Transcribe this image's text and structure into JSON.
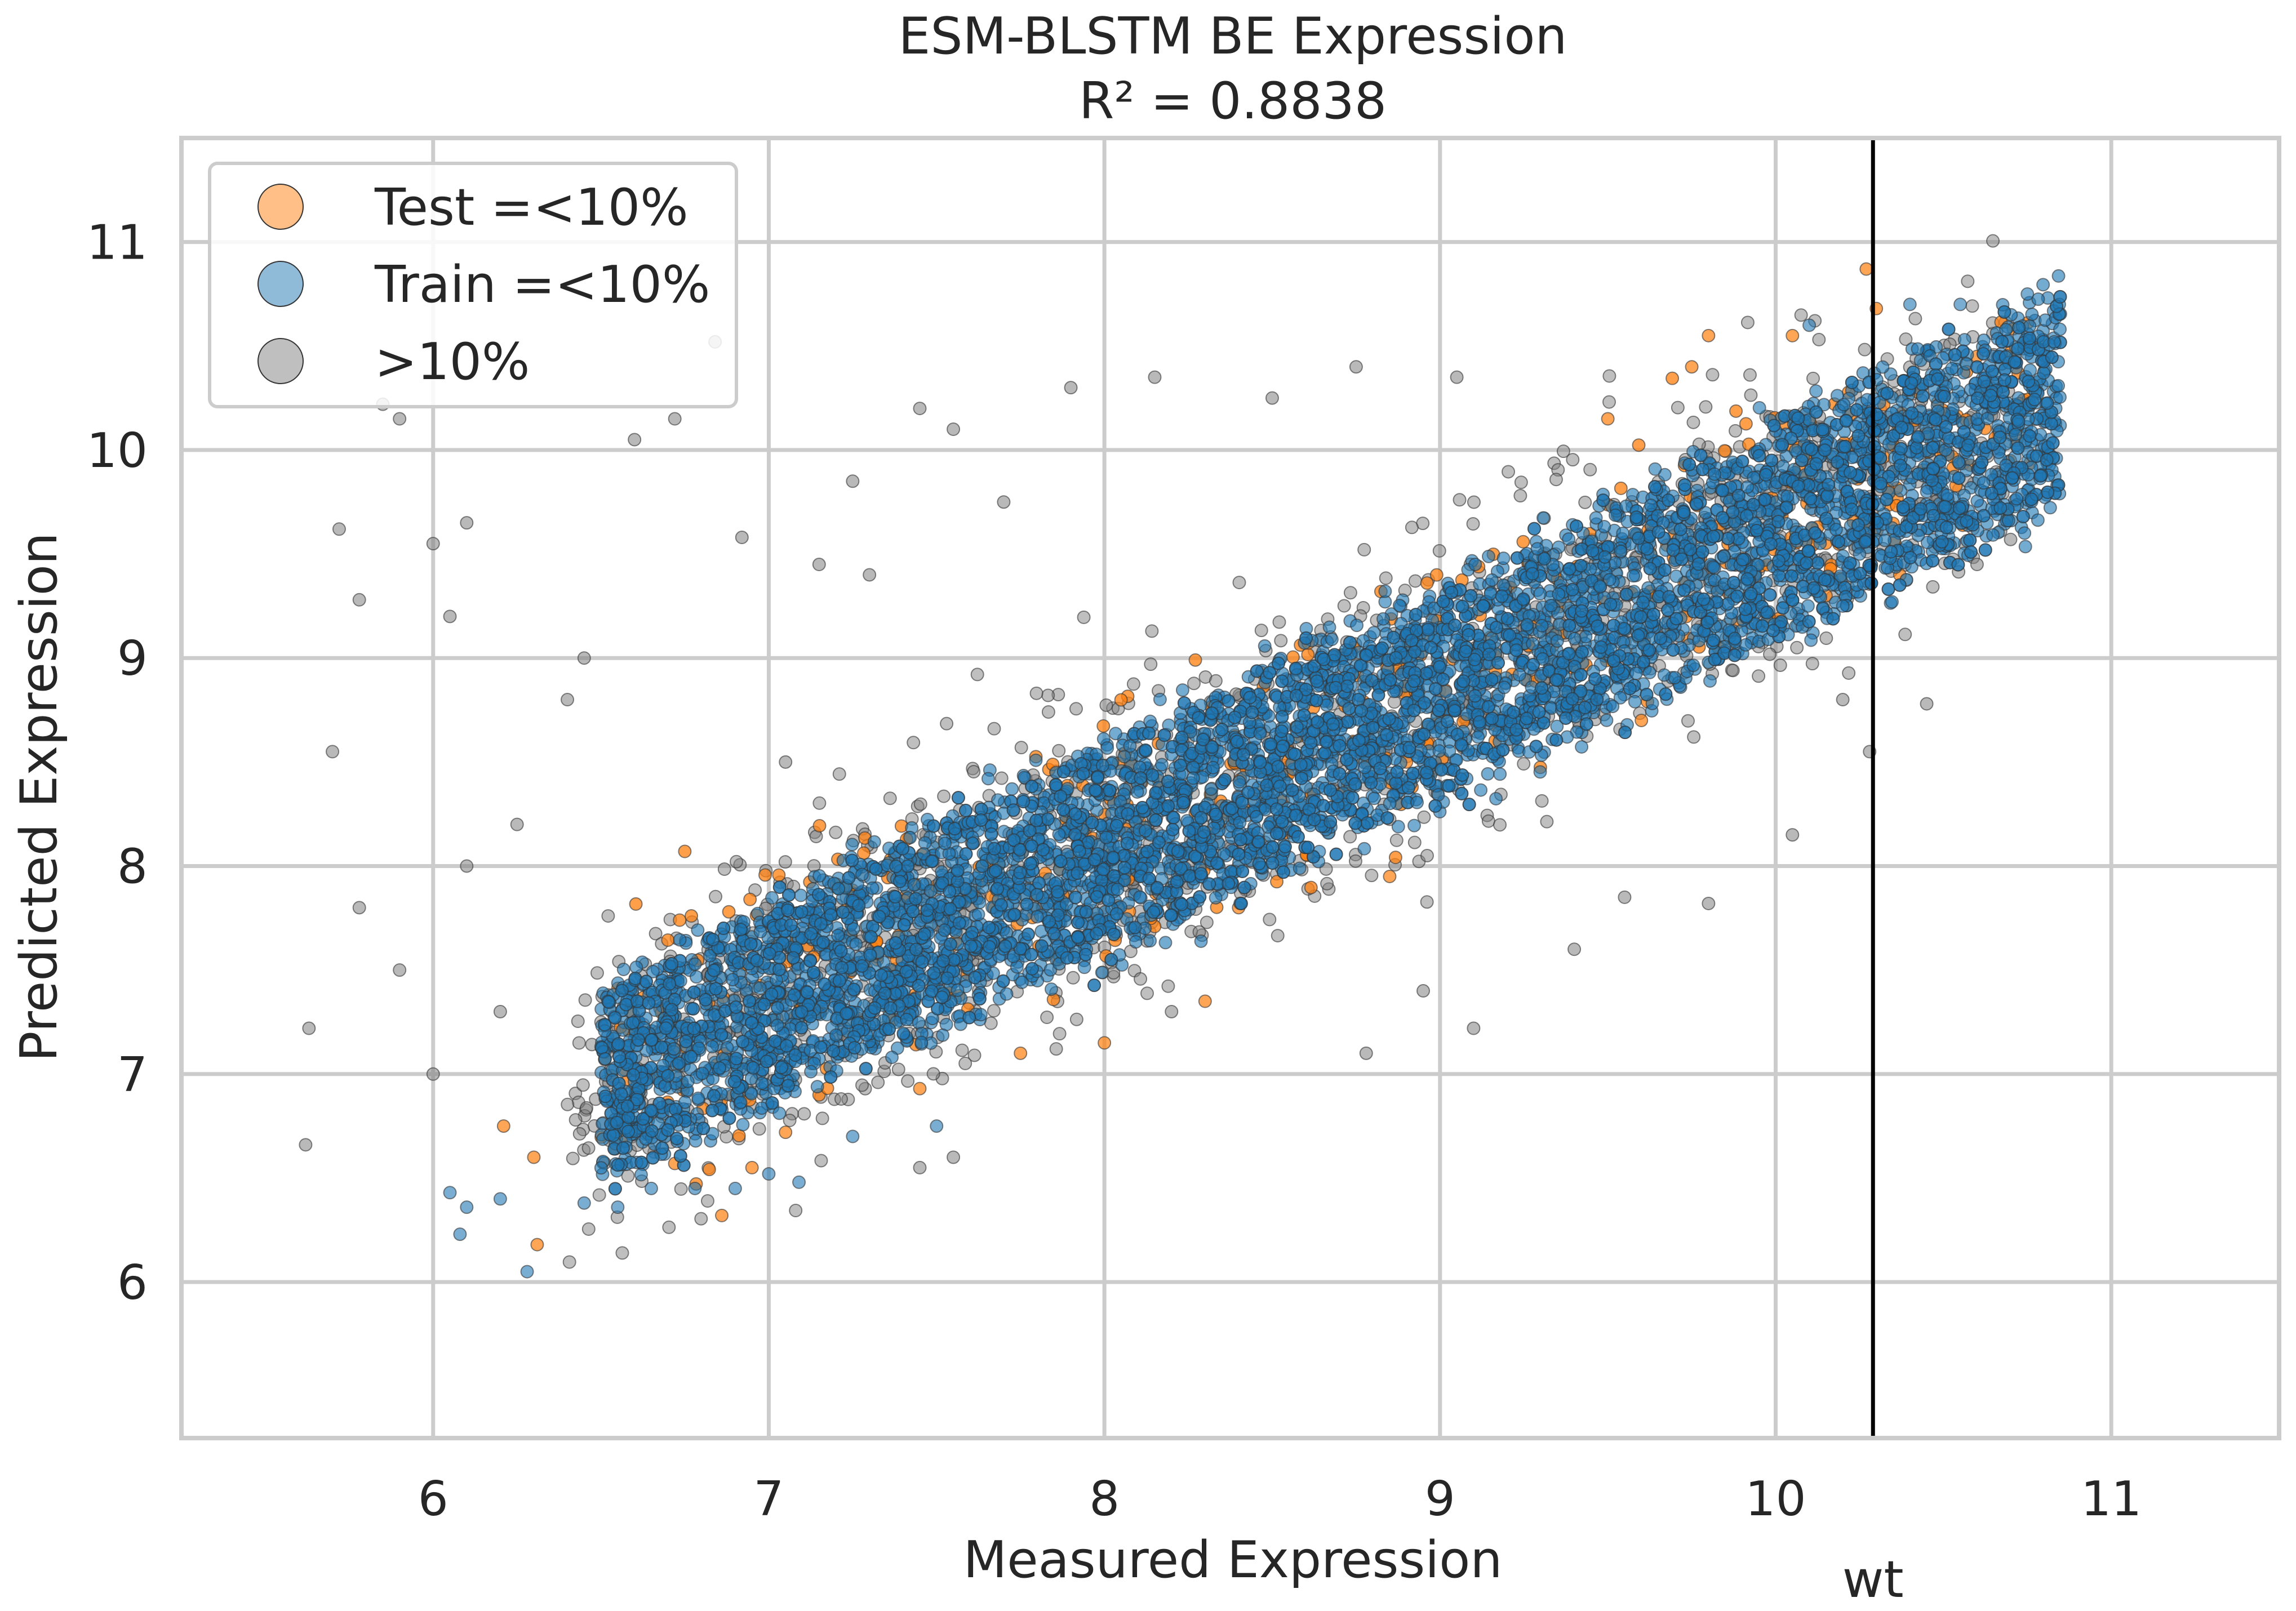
{
  "chart_data": {
    "type": "scatter",
    "title": "ESM-BLSTM BE Expression",
    "subtitle": "R² = 0.8838",
    "xlabel": "Measured Expression",
    "ylabel": "Predicted Expression",
    "xlim": [
      5.25,
      11.5
    ],
    "ylim": [
      5.25,
      11.5
    ],
    "xticks": [
      6,
      7,
      8,
      9,
      10,
      11
    ],
    "yticks": [
      6,
      7,
      8,
      9,
      10,
      11
    ],
    "xtick_labels": [
      "6",
      "7",
      "8",
      "9",
      "10",
      "11"
    ],
    "ytick_labels": [
      "6",
      "7",
      "8",
      "9",
      "10",
      "11"
    ],
    "grid": true,
    "legend_position": "top-left",
    "reference_line": {
      "label": "wt",
      "x": 10.29,
      "color": "#000000"
    },
    "series": [
      {
        "name": "Test =<10%",
        "color": "#ff7f0e",
        "description_points": [
          [
            6.21,
            6.75
          ],
          [
            6.31,
            6.18
          ],
          [
            6.3,
            6.6
          ],
          [
            6.86,
            6.32
          ],
          [
            6.95,
            6.55
          ],
          [
            6.72,
            6.57
          ],
          [
            7.05,
            6.72
          ],
          [
            7.45,
            6.93
          ],
          [
            7.75,
            7.1
          ],
          [
            8.4,
            7.8
          ],
          [
            8.9,
            8.5
          ],
          [
            9.15,
            9.1
          ],
          [
            9.5,
            10.15
          ],
          [
            9.75,
            10.4
          ],
          [
            9.8,
            10.55
          ],
          [
            10.05,
            10.55
          ],
          [
            10.27,
            10.87
          ],
          [
            10.3,
            10.68
          ],
          [
            10.6,
            10.45
          ],
          [
            10.72,
            10.1
          ],
          [
            10.37,
            9.4
          ],
          [
            10.5,
            9.55
          ],
          [
            10.15,
            9.3
          ],
          [
            9.98,
            9.2
          ],
          [
            9.6,
            8.7
          ],
          [
            8.85,
            7.95
          ],
          [
            8.3,
            7.35
          ],
          [
            8.0,
            7.15
          ]
        ]
      },
      {
        "name": "Train =<10%",
        "color": "#1f77b4",
        "core_band": {
          "x_from": 6.5,
          "x_to": 10.85,
          "lower_at_x_from": 6.9,
          "upper_at_x_from": 7.1,
          "lower_at_x_to": 10.1,
          "upper_at_x_to": 10.5
        },
        "description_points": [
          [
            6.05,
            6.43
          ],
          [
            6.1,
            6.36
          ],
          [
            6.08,
            6.23
          ],
          [
            6.28,
            6.05
          ],
          [
            6.2,
            6.4
          ],
          [
            6.45,
            6.38
          ],
          [
            6.55,
            6.36
          ],
          [
            6.65,
            6.45
          ],
          [
            6.78,
            6.45
          ],
          [
            6.9,
            6.45
          ],
          [
            7.0,
            6.52
          ],
          [
            7.09,
            6.48
          ],
          [
            7.25,
            6.7
          ],
          [
            7.5,
            6.75
          ],
          [
            10.1,
            10.6
          ],
          [
            10.4,
            10.7
          ],
          [
            10.55,
            10.7
          ],
          [
            10.75,
            10.75
          ],
          [
            10.83,
            10.52
          ],
          [
            10.45,
            9.8
          ],
          [
            10.25,
            9.5
          ],
          [
            10.2,
            9.25
          ]
        ]
      },
      {
        "name": ">10%",
        "color": "#808080",
        "description_points": [
          [
            5.62,
            6.66
          ],
          [
            5.63,
            7.22
          ],
          [
            5.7,
            8.55
          ],
          [
            5.72,
            9.62
          ],
          [
            5.78,
            9.28
          ],
          [
            5.85,
            10.22
          ],
          [
            5.9,
            10.15
          ],
          [
            6.0,
            9.55
          ],
          [
            6.05,
            9.2
          ],
          [
            6.1,
            9.65
          ],
          [
            5.78,
            7.8
          ],
          [
            5.9,
            7.5
          ],
          [
            6.0,
            7.0
          ],
          [
            6.1,
            8.0
          ],
          [
            6.2,
            7.3
          ],
          [
            6.25,
            8.2
          ],
          [
            6.4,
            8.8
          ],
          [
            6.45,
            9.0
          ],
          [
            6.6,
            10.05
          ],
          [
            6.72,
            10.15
          ],
          [
            6.84,
            10.52
          ],
          [
            6.92,
            9.58
          ],
          [
            7.05,
            8.5
          ],
          [
            7.15,
            9.45
          ],
          [
            7.25,
            9.85
          ],
          [
            7.3,
            9.4
          ],
          [
            7.45,
            10.2
          ],
          [
            7.55,
            10.1
          ],
          [
            7.7,
            9.75
          ],
          [
            7.9,
            10.3
          ],
          [
            8.15,
            10.35
          ],
          [
            8.5,
            10.25
          ],
          [
            8.75,
            10.4
          ],
          [
            9.05,
            10.35
          ],
          [
            7.45,
            6.55
          ],
          [
            7.55,
            6.6
          ],
          [
            8.2,
            7.3
          ],
          [
            8.78,
            7.1
          ],
          [
            8.95,
            7.4
          ],
          [
            9.1,
            7.22
          ],
          [
            9.4,
            7.6
          ],
          [
            9.55,
            7.85
          ],
          [
            9.8,
            7.82
          ],
          [
            10.05,
            8.15
          ],
          [
            10.2,
            8.8
          ],
          [
            10.28,
            8.55
          ],
          [
            10.45,
            8.78
          ],
          [
            10.6,
            9.45
          ],
          [
            10.7,
            9.57
          ]
        ]
      }
    ]
  }
}
